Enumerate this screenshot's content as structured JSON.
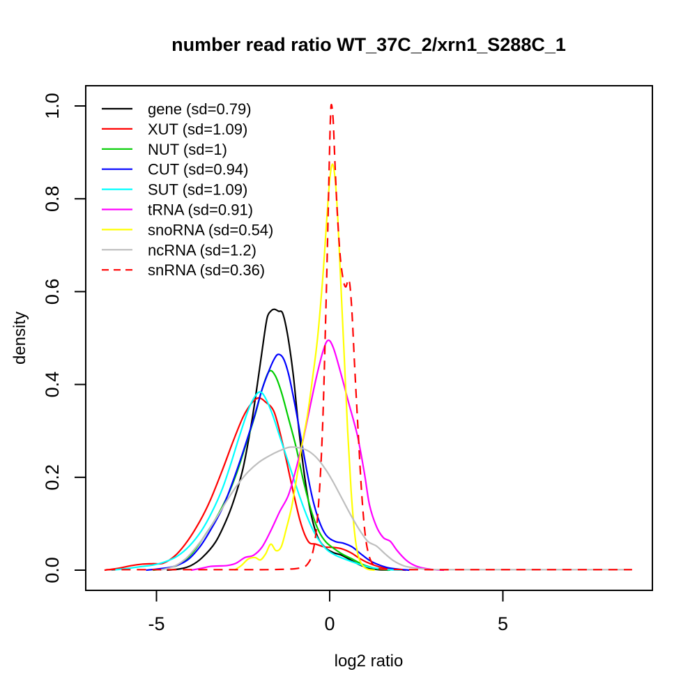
{
  "title": "number read ratio WT_37C_2/xrn1_S288C_1",
  "x_axis": {
    "label": "log2 ratio",
    "tick_labels": [
      "-5",
      "0",
      "5"
    ],
    "tick_values": [
      -5,
      0,
      5
    ]
  },
  "y_axis": {
    "label": "density",
    "tick_labels": [
      "0.0",
      "0.2",
      "0.4",
      "0.6",
      "0.8",
      "1.0"
    ],
    "tick_values": [
      0,
      0.2,
      0.4,
      0.6,
      0.8,
      1.0
    ]
  },
  "chart_data": {
    "type": "line",
    "title": "number read ratio WT_37C_2/xrn1_S288C_1",
    "xlabel": "log2 ratio",
    "ylabel": "density",
    "xlim": [
      -7.04,
      9.32
    ],
    "ylim": [
      -0.044,
      1.044
    ],
    "x_ticks": [
      -5,
      0,
      5
    ],
    "y_ticks": [
      0,
      0.2,
      0.4,
      0.6,
      0.8,
      1.0
    ],
    "grid": false,
    "legend_position": "top-left",
    "background": "#ffffff",
    "series": [
      {
        "name": "gene",
        "label": "gene (sd=0.79)",
        "sd": 0.79,
        "color": "#000000",
        "dashed": false,
        "points": [
          [
            -4.7,
            0
          ],
          [
            -4.3,
            0.003
          ],
          [
            -4.0,
            0.01
          ],
          [
            -3.68,
            0.027
          ],
          [
            -3.3,
            0.06
          ],
          [
            -3.0,
            0.105
          ],
          [
            -2.76,
            0.152
          ],
          [
            -2.5,
            0.22
          ],
          [
            -2.25,
            0.32
          ],
          [
            -2.05,
            0.42
          ],
          [
            -1.9,
            0.5
          ],
          [
            -1.8,
            0.545
          ],
          [
            -1.7,
            0.558
          ],
          [
            -1.6,
            0.562
          ],
          [
            -1.48,
            0.558
          ],
          [
            -1.35,
            0.552
          ],
          [
            -1.2,
            0.5
          ],
          [
            -1.05,
            0.42
          ],
          [
            -0.9,
            0.31
          ],
          [
            -0.72,
            0.2
          ],
          [
            -0.55,
            0.125
          ],
          [
            -0.35,
            0.072
          ],
          [
            -0.12,
            0.048
          ],
          [
            0.1,
            0.038
          ],
          [
            0.35,
            0.032
          ],
          [
            0.6,
            0.022
          ],
          [
            0.85,
            0.012
          ],
          [
            1.1,
            0.005
          ],
          [
            1.4,
            0.001
          ],
          [
            1.7,
            0
          ]
        ]
      },
      {
        "name": "XUT",
        "label": "XUT (sd=1.09)",
        "sd": 1.09,
        "color": "#FF0000",
        "dashed": false,
        "points": [
          [
            -6.5,
            0
          ],
          [
            -6.1,
            0.004
          ],
          [
            -5.7,
            0.01
          ],
          [
            -5.4,
            0.013
          ],
          [
            -5.1,
            0.014
          ],
          [
            -4.8,
            0.015
          ],
          [
            -4.45,
            0.032
          ],
          [
            -4.1,
            0.063
          ],
          [
            -3.75,
            0.105
          ],
          [
            -3.45,
            0.15
          ],
          [
            -3.1,
            0.215
          ],
          [
            -2.8,
            0.275
          ],
          [
            -2.5,
            0.33
          ],
          [
            -2.25,
            0.36
          ],
          [
            -2.05,
            0.371
          ],
          [
            -1.85,
            0.362
          ],
          [
            -1.6,
            0.34
          ],
          [
            -1.35,
            0.27
          ],
          [
            -1.1,
            0.185
          ],
          [
            -0.85,
            0.105
          ],
          [
            -0.62,
            0.062
          ],
          [
            -0.4,
            0.056
          ],
          [
            -0.15,
            0.05
          ],
          [
            0.1,
            0.049
          ],
          [
            0.35,
            0.046
          ],
          [
            0.6,
            0.038
          ],
          [
            0.85,
            0.026
          ],
          [
            1.1,
            0.016
          ],
          [
            1.35,
            0.009
          ],
          [
            1.6,
            0.004
          ],
          [
            1.9,
            0.001
          ],
          [
            2.2,
            0
          ]
        ]
      },
      {
        "name": "NUT",
        "label": "NUT (sd=1)",
        "sd": 1,
        "color": "#00CD00",
        "dashed": false,
        "points": [
          [
            -5.1,
            0
          ],
          [
            -4.7,
            0.004
          ],
          [
            -4.3,
            0.014
          ],
          [
            -3.95,
            0.038
          ],
          [
            -3.6,
            0.075
          ],
          [
            -3.28,
            0.112
          ],
          [
            -2.95,
            0.16
          ],
          [
            -2.68,
            0.21
          ],
          [
            -2.4,
            0.275
          ],
          [
            -2.15,
            0.335
          ],
          [
            -1.95,
            0.39
          ],
          [
            -1.75,
            0.428
          ],
          [
            -1.58,
            0.42
          ],
          [
            -1.4,
            0.385
          ],
          [
            -1.2,
            0.33
          ],
          [
            -0.97,
            0.265
          ],
          [
            -0.75,
            0.19
          ],
          [
            -0.52,
            0.125
          ],
          [
            -0.3,
            0.082
          ],
          [
            -0.1,
            0.06
          ],
          [
            0.15,
            0.045
          ],
          [
            0.4,
            0.033
          ],
          [
            0.65,
            0.024
          ],
          [
            0.9,
            0.014
          ],
          [
            1.15,
            0.007
          ],
          [
            1.45,
            0.002
          ],
          [
            1.75,
            0
          ]
        ]
      },
      {
        "name": "CUT",
        "label": "CUT (sd=0.94)",
        "sd": 0.94,
        "color": "#0000FF",
        "dashed": false,
        "points": [
          [
            -5.3,
            0
          ],
          [
            -4.9,
            0.003
          ],
          [
            -4.5,
            0.008
          ],
          [
            -4.1,
            0.022
          ],
          [
            -3.75,
            0.05
          ],
          [
            -3.45,
            0.085
          ],
          [
            -3.1,
            0.133
          ],
          [
            -2.8,
            0.19
          ],
          [
            -2.5,
            0.255
          ],
          [
            -2.2,
            0.325
          ],
          [
            -1.95,
            0.39
          ],
          [
            -1.75,
            0.43
          ],
          [
            -1.6,
            0.455
          ],
          [
            -1.48,
            0.465
          ],
          [
            -1.33,
            0.455
          ],
          [
            -1.18,
            0.42
          ],
          [
            -1.0,
            0.355
          ],
          [
            -0.83,
            0.285
          ],
          [
            -0.65,
            0.21
          ],
          [
            -0.48,
            0.15
          ],
          [
            -0.3,
            0.105
          ],
          [
            -0.1,
            0.075
          ],
          [
            0.15,
            0.062
          ],
          [
            0.4,
            0.058
          ],
          [
            0.65,
            0.05
          ],
          [
            0.9,
            0.035
          ],
          [
            1.15,
            0.021
          ],
          [
            1.4,
            0.012
          ],
          [
            1.7,
            0.005
          ],
          [
            2.0,
            0.002
          ],
          [
            2.3,
            0
          ]
        ]
      },
      {
        "name": "SUT",
        "label": "SUT (sd=1.09)",
        "sd": 1.09,
        "color": "#00FFFF",
        "dashed": false,
        "points": [
          [
            -6.3,
            0
          ],
          [
            -5.9,
            0.003
          ],
          [
            -5.5,
            0.007
          ],
          [
            -5.1,
            0.011
          ],
          [
            -4.75,
            0.018
          ],
          [
            -4.4,
            0.03
          ],
          [
            -4.05,
            0.052
          ],
          [
            -3.7,
            0.085
          ],
          [
            -3.4,
            0.125
          ],
          [
            -3.1,
            0.175
          ],
          [
            -2.85,
            0.23
          ],
          [
            -2.6,
            0.29
          ],
          [
            -2.35,
            0.345
          ],
          [
            -2.15,
            0.375
          ],
          [
            -2.0,
            0.384
          ],
          [
            -1.85,
            0.37
          ],
          [
            -1.65,
            0.335
          ],
          [
            -1.45,
            0.29
          ],
          [
            -1.25,
            0.245
          ],
          [
            -1.05,
            0.2
          ],
          [
            -0.85,
            0.155
          ],
          [
            -0.65,
            0.115
          ],
          [
            -0.45,
            0.082
          ],
          [
            -0.25,
            0.058
          ],
          [
            -0.05,
            0.042
          ],
          [
            0.2,
            0.031
          ],
          [
            0.5,
            0.022
          ],
          [
            0.8,
            0.014
          ],
          [
            1.1,
            0.007
          ],
          [
            1.35,
            0.004
          ],
          [
            1.7,
            0.001
          ],
          [
            2.1,
            0
          ]
        ]
      },
      {
        "name": "tRNA",
        "label": "tRNA (sd=0.91)",
        "sd": 0.91,
        "color": "#FF00FF",
        "dashed": false,
        "points": [
          [
            -4.0,
            0
          ],
          [
            -3.7,
            0.004
          ],
          [
            -3.45,
            0.008
          ],
          [
            -3.2,
            0.009
          ],
          [
            -2.95,
            0.01
          ],
          [
            -2.7,
            0.015
          ],
          [
            -2.45,
            0.027
          ],
          [
            -2.2,
            0.032
          ],
          [
            -1.95,
            0.05
          ],
          [
            -1.7,
            0.085
          ],
          [
            -1.45,
            0.125
          ],
          [
            -1.2,
            0.16
          ],
          [
            -1.0,
            0.21
          ],
          [
            -0.8,
            0.27
          ],
          [
            -0.6,
            0.34
          ],
          [
            -0.4,
            0.41
          ],
          [
            -0.2,
            0.47
          ],
          [
            -0.05,
            0.495
          ],
          [
            0.1,
            0.48
          ],
          [
            0.3,
            0.43
          ],
          [
            0.55,
            0.36
          ],
          [
            0.8,
            0.29
          ],
          [
            1.0,
            0.21
          ],
          [
            1.15,
            0.14
          ],
          [
            1.35,
            0.094
          ],
          [
            1.55,
            0.07
          ],
          [
            1.75,
            0.062
          ],
          [
            1.95,
            0.042
          ],
          [
            2.2,
            0.022
          ],
          [
            2.45,
            0.01
          ],
          [
            2.7,
            0.0045
          ],
          [
            3.0,
            0.001
          ],
          [
            3.3,
            0
          ]
        ]
      },
      {
        "name": "snoRNA",
        "label": "snoRNA (sd=0.54)",
        "sd": 0.54,
        "color": "#FFFF00",
        "dashed": false,
        "points": [
          [
            -2.75,
            0
          ],
          [
            -2.55,
            0.01
          ],
          [
            -2.35,
            0.024
          ],
          [
            -2.15,
            0.027
          ],
          [
            -2.0,
            0.022
          ],
          [
            -1.85,
            0.035
          ],
          [
            -1.7,
            0.056
          ],
          [
            -1.55,
            0.042
          ],
          [
            -1.4,
            0.05
          ],
          [
            -1.25,
            0.09
          ],
          [
            -1.1,
            0.135
          ],
          [
            -0.95,
            0.2
          ],
          [
            -0.8,
            0.27
          ],
          [
            -0.65,
            0.33
          ],
          [
            -0.5,
            0.41
          ],
          [
            -0.35,
            0.5
          ],
          [
            -0.2,
            0.63
          ],
          [
            -0.08,
            0.76
          ],
          [
            0.0,
            0.84
          ],
          [
            0.08,
            0.875
          ],
          [
            0.16,
            0.84
          ],
          [
            0.24,
            0.75
          ],
          [
            0.32,
            0.62
          ],
          [
            0.42,
            0.46
          ],
          [
            0.52,
            0.3
          ],
          [
            0.62,
            0.17
          ],
          [
            0.72,
            0.08
          ],
          [
            0.82,
            0.032
          ],
          [
            0.95,
            0.01
          ],
          [
            1.1,
            0.002
          ],
          [
            1.3,
            0
          ]
        ]
      },
      {
        "name": "ncRNA",
        "label": "ncRNA (sd=1.2)",
        "sd": 1.2,
        "color": "#BEBEBE",
        "dashed": false,
        "points": [
          [
            -4.9,
            0
          ],
          [
            -4.5,
            0.008
          ],
          [
            -4.15,
            0.025
          ],
          [
            -3.85,
            0.05
          ],
          [
            -3.55,
            0.08
          ],
          [
            -3.25,
            0.115
          ],
          [
            -2.95,
            0.152
          ],
          [
            -2.65,
            0.185
          ],
          [
            -2.35,
            0.212
          ],
          [
            -2.05,
            0.232
          ],
          [
            -1.75,
            0.246
          ],
          [
            -1.45,
            0.257
          ],
          [
            -1.15,
            0.265
          ],
          [
            -0.85,
            0.263
          ],
          [
            -0.6,
            0.256
          ],
          [
            -0.35,
            0.24
          ],
          [
            -0.1,
            0.215
          ],
          [
            0.1,
            0.19
          ],
          [
            0.35,
            0.155
          ],
          [
            0.6,
            0.12
          ],
          [
            0.85,
            0.088
          ],
          [
            1.1,
            0.062
          ],
          [
            1.35,
            0.052
          ],
          [
            1.6,
            0.035
          ],
          [
            1.85,
            0.02
          ],
          [
            2.15,
            0.009
          ],
          [
            2.45,
            0.005
          ],
          [
            2.8,
            0.002
          ],
          [
            3.2,
            0.001
          ],
          [
            5.5,
            0.001
          ],
          [
            8.7,
            0.001
          ]
        ]
      },
      {
        "name": "snRNA",
        "label": "snRNA (sd=0.36)",
        "sd": 0.36,
        "color": "#FF0000",
        "dashed": true,
        "points": [
          [
            -6.45,
            0.001
          ],
          [
            -5.0,
            0.001
          ],
          [
            -3.5,
            0.001
          ],
          [
            -2.5,
            0.001
          ],
          [
            -1.8,
            0.001
          ],
          [
            -1.3,
            0.002
          ],
          [
            -1.0,
            0.003
          ],
          [
            -0.8,
            0.006
          ],
          [
            -0.65,
            0.012
          ],
          [
            -0.5,
            0.035
          ],
          [
            -0.38,
            0.09
          ],
          [
            -0.28,
            0.19
          ],
          [
            -0.2,
            0.32
          ],
          [
            -0.13,
            0.5
          ],
          [
            -0.07,
            0.68
          ],
          [
            -0.02,
            0.85
          ],
          [
            0.02,
            0.97
          ],
          [
            0.05,
            1.003
          ],
          [
            0.1,
            0.97
          ],
          [
            0.15,
            0.88
          ],
          [
            0.22,
            0.77
          ],
          [
            0.3,
            0.68
          ],
          [
            0.38,
            0.63
          ],
          [
            0.46,
            0.61
          ],
          [
            0.56,
            0.625
          ],
          [
            0.64,
            0.56
          ],
          [
            0.72,
            0.44
          ],
          [
            0.82,
            0.3
          ],
          [
            0.92,
            0.17
          ],
          [
            1.02,
            0.08
          ],
          [
            1.12,
            0.035
          ],
          [
            1.25,
            0.012
          ],
          [
            1.4,
            0.004
          ],
          [
            1.6,
            0.002
          ],
          [
            2.5,
            0.001
          ],
          [
            5.0,
            0.001
          ],
          [
            8.73,
            0.001
          ]
        ]
      }
    ]
  }
}
